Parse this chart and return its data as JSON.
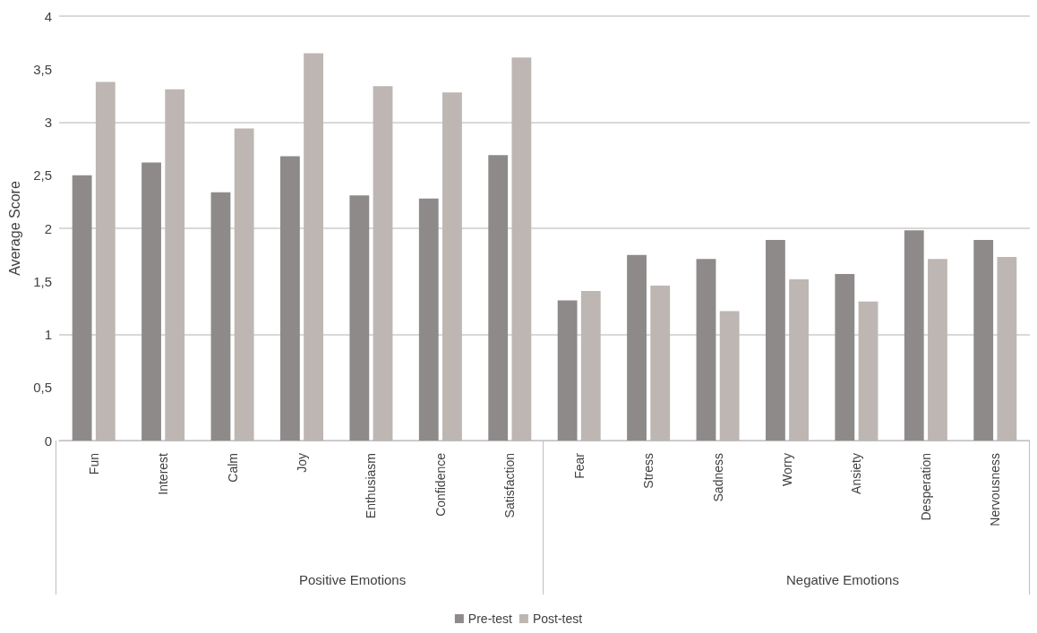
{
  "chart_data": {
    "type": "bar",
    "ylabel": "Average Score",
    "categories": [
      "Fun",
      "Interest",
      "Calm",
      "Joy",
      "Enthusiasm",
      "Confidence",
      "Satisfaction",
      "Fear",
      "Stress",
      "Sadness",
      "Worry",
      "Ansiety",
      "Desperation",
      "Nervousness"
    ],
    "series": [
      {
        "name": "Pre-test",
        "color": "#8f8a8a",
        "values": [
          2.5,
          2.62,
          2.34,
          2.68,
          2.31,
          2.28,
          2.69,
          1.32,
          1.75,
          1.71,
          1.89,
          1.57,
          1.98,
          1.89
        ]
      },
      {
        "name": "Post-test",
        "color": "#bdb6b3",
        "values": [
          3.38,
          3.31,
          2.94,
          3.65,
          3.34,
          3.28,
          3.61,
          1.41,
          1.46,
          1.22,
          1.52,
          1.31,
          1.71,
          1.73
        ]
      }
    ],
    "ylim": [
      0,
      4
    ],
    "yticks": [
      0,
      {
        "value": 0.5,
        "label": "0,5"
      },
      1,
      {
        "value": 1.5,
        "label": "1,5"
      },
      2,
      {
        "value": 2.5,
        "label": "2,5"
      },
      3,
      {
        "value": 3.5,
        "label": "3,5"
      },
      4
    ],
    "annotations": [
      "Positive Emotions",
      "Negative Emotions"
    ],
    "grid": "y",
    "legend": "bottom"
  }
}
